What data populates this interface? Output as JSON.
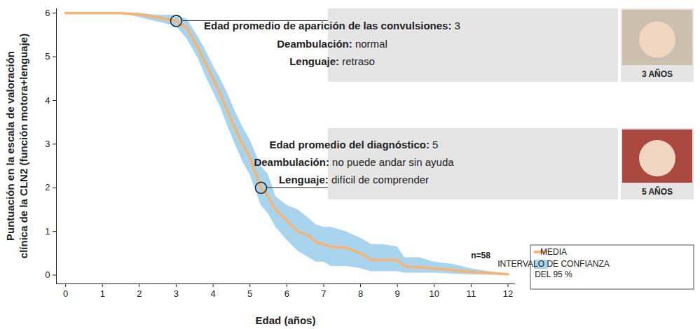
{
  "chart_data": {
    "type": "line",
    "xlabel": "Edad (años)",
    "ylabel": [
      "Puntuación en la escala de valoración",
      "clínica de la CLN2 (función motora+lenguaje)"
    ],
    "x": [
      0,
      1.5,
      2,
      2.5,
      3,
      3.3,
      3.6,
      3.8,
      4,
      4.2,
      4.4,
      4.6,
      4.8,
      5,
      5.3,
      5.5,
      5.7,
      6,
      6.3,
      6.6,
      6.8,
      7,
      7.2,
      7.6,
      8,
      8.3,
      8.6,
      9,
      9.2,
      9.6,
      10,
      10.5,
      11,
      11.5,
      12
    ],
    "series": [
      {
        "name": "INTERVALO DE CONFIANZA DEL 95 %",
        "type": "area",
        "color": "#a8d4ee",
        "lower": [
          6,
          6,
          5.9,
          5.8,
          5.7,
          5.4,
          4.95,
          4.55,
          4.2,
          3.85,
          3.4,
          3.0,
          2.6,
          2.3,
          1.6,
          1.4,
          1.1,
          0.8,
          0.55,
          0.4,
          0.3,
          0.3,
          0.2,
          0.2,
          0.15,
          0.08,
          0.08,
          0.08,
          0.05,
          0.05,
          0.05,
          0.03,
          0.01,
          0,
          0
        ],
        "upper": [
          6,
          6,
          6,
          5.95,
          5.95,
          5.85,
          5.45,
          5.15,
          4.8,
          4.5,
          4.15,
          3.75,
          3.4,
          3.1,
          2.5,
          2.3,
          1.8,
          1.6,
          1.5,
          1.3,
          1.15,
          1.1,
          1.1,
          1.0,
          0.85,
          0.7,
          0.7,
          0.65,
          0.4,
          0.4,
          0.3,
          0.25,
          0.15,
          0.08,
          0.03
        ]
      },
      {
        "name": "MEDIA",
        "type": "line",
        "color": "#f9b36e",
        "values": [
          6,
          6,
          5.97,
          5.9,
          5.82,
          5.65,
          5.2,
          4.85,
          4.5,
          4.15,
          3.75,
          3.35,
          3.0,
          2.7,
          2.0,
          1.8,
          1.5,
          1.25,
          1.0,
          0.9,
          0.75,
          0.7,
          0.65,
          0.63,
          0.5,
          0.35,
          0.35,
          0.35,
          0.2,
          0.18,
          0.15,
          0.12,
          0.07,
          0.05,
          0.02
        ]
      }
    ],
    "xlim": [
      -0.25,
      12.2
    ],
    "ylim": [
      -0.2,
      6.1
    ],
    "xticks": [
      0,
      1,
      2,
      3,
      4,
      5,
      6,
      7,
      8,
      9,
      10,
      11,
      12
    ],
    "yticks": [
      0,
      1,
      2,
      3,
      4,
      5,
      6
    ],
    "grid": false,
    "legend": "bottom right",
    "note": "n=58",
    "annotations": [
      {
        "x": 3,
        "y": 5.82,
        "lines": [
          {
            "label": "Edad promedio de aparición de las convulsiones:",
            "text": "3"
          },
          {
            "label": "Deambulación:",
            "text": "normal"
          },
          {
            "label": "Lenguaje:",
            "text": "retraso"
          }
        ],
        "photo_caption": "3 AÑOS"
      },
      {
        "x": 5.3,
        "y": 2.0,
        "lines": [
          {
            "label": "Edad promedio del diagnóstico:",
            "text": "5"
          },
          {
            "label": "Deambulación:",
            "text": "no puede andar sin ayuda"
          },
          {
            "label": "Lenguaje:",
            "text": "difícil de comprender"
          }
        ],
        "photo_caption": "5 AÑOS"
      }
    ]
  }
}
